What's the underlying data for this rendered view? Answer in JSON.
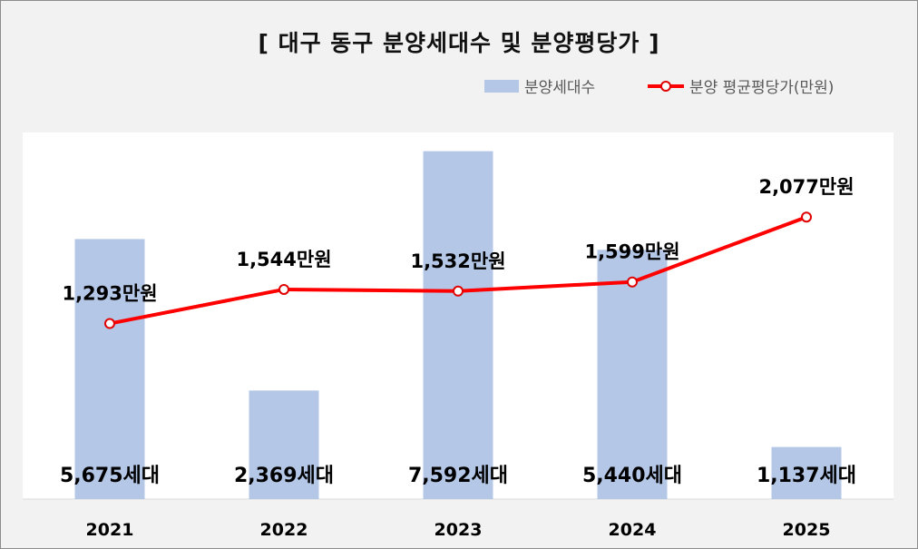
{
  "chart_data": {
    "type": "bar",
    "title": "[ 대구 동구 분양세대수 및 분양평당가 ]",
    "categories": [
      "2021",
      "2022",
      "2023",
      "2024",
      "2025"
    ],
    "series": [
      {
        "name": "분양세대수",
        "type": "bar",
        "values": [
          5675,
          2369,
          7592,
          5440,
          1137
        ],
        "labels": [
          "5,675세대",
          "2,369세대",
          "7,592세대",
          "5,440세대",
          "1,137세대"
        ],
        "color": "#b4c7e7"
      },
      {
        "name": "분양 평균평당가(만원)",
        "type": "line",
        "values": [
          1293,
          1544,
          1532,
          1599,
          2077
        ],
        "labels": [
          "1,293만원",
          "1,544만원",
          "1,532만원",
          "1,599만원",
          "2,077만원"
        ],
        "color": "#ff0000"
      }
    ],
    "bar_axis_range": [
      0,
      8000
    ],
    "line_axis_range": [
      0,
      2700
    ],
    "grid": false,
    "legend_position": "top-right"
  }
}
